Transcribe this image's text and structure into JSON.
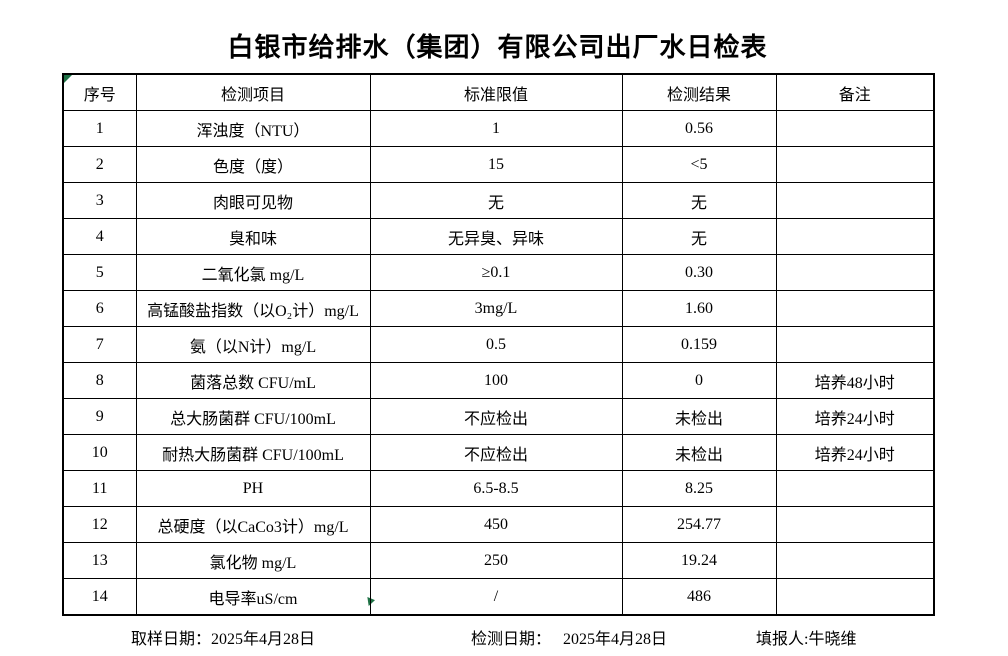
{
  "page": {
    "title": "白银市给排水（集团）有限公司出厂水日检表"
  },
  "table": {
    "headers": {
      "no": "序号",
      "item": "检测项目",
      "limit": "标准限值",
      "result": "检测结果",
      "remark": "备注"
    },
    "rows": [
      {
        "no": "1",
        "item": "浑浊度（NTU）",
        "limit": "1",
        "result": "0.56",
        "remark": ""
      },
      {
        "no": "2",
        "item": "色度（度）",
        "limit": "15",
        "result": "<5",
        "remark": ""
      },
      {
        "no": "3",
        "item": "肉眼可见物",
        "limit": "无",
        "result": "无",
        "remark": ""
      },
      {
        "no": "4",
        "item": "臭和味",
        "limit": "无异臭、异味",
        "result": "无",
        "remark": ""
      },
      {
        "no": "5",
        "item": "二氧化氯 mg/L",
        "limit": "≥0.1",
        "result": "0.30",
        "remark": ""
      },
      {
        "no": "6",
        "item": "高锰酸盐指数（以O₂计）mg/L",
        "limit": "3mg/L",
        "result": "1.60",
        "remark": ""
      },
      {
        "no": "7",
        "item": "氨（以N计）mg/L",
        "limit": "0.5",
        "result": "0.159",
        "remark": ""
      },
      {
        "no": "8",
        "item": "菌落总数 CFU/mL",
        "limit": "100",
        "result": "0",
        "remark": "培养48小时"
      },
      {
        "no": "9",
        "item": "总大肠菌群 CFU/100mL",
        "limit": "不应检出",
        "result": "未检出",
        "remark": "培养24小时"
      },
      {
        "no": "10",
        "item": "耐热大肠菌群 CFU/100mL",
        "limit": "不应检出",
        "result": "未检出",
        "remark": "培养24小时"
      },
      {
        "no": "11",
        "item": "PH",
        "limit": "6.5-8.5",
        "result": "8.25",
        "remark": ""
      },
      {
        "no": "12",
        "item": "总硬度（以CaCo3计）mg/L",
        "limit": "450",
        "result": "254.77",
        "remark": ""
      },
      {
        "no": "13",
        "item": "氯化物 mg/L",
        "limit": "250",
        "result": "19.24",
        "remark": ""
      },
      {
        "no": "14",
        "item": "电导率uS/cm",
        "limit": "/",
        "result": "486",
        "remark": ""
      }
    ]
  },
  "footer": {
    "sampling": {
      "label": "取样日期：",
      "value": "2025年4月28日"
    },
    "testing": {
      "label": "检测日期：",
      "value": "2025年4月28日"
    },
    "reporter": {
      "label": "填报人:",
      "value": "牛晓维"
    }
  },
  "colors": {
    "text": "#000000",
    "border": "#000000",
    "background": "#ffffff",
    "marker_green": "#1e7145"
  }
}
